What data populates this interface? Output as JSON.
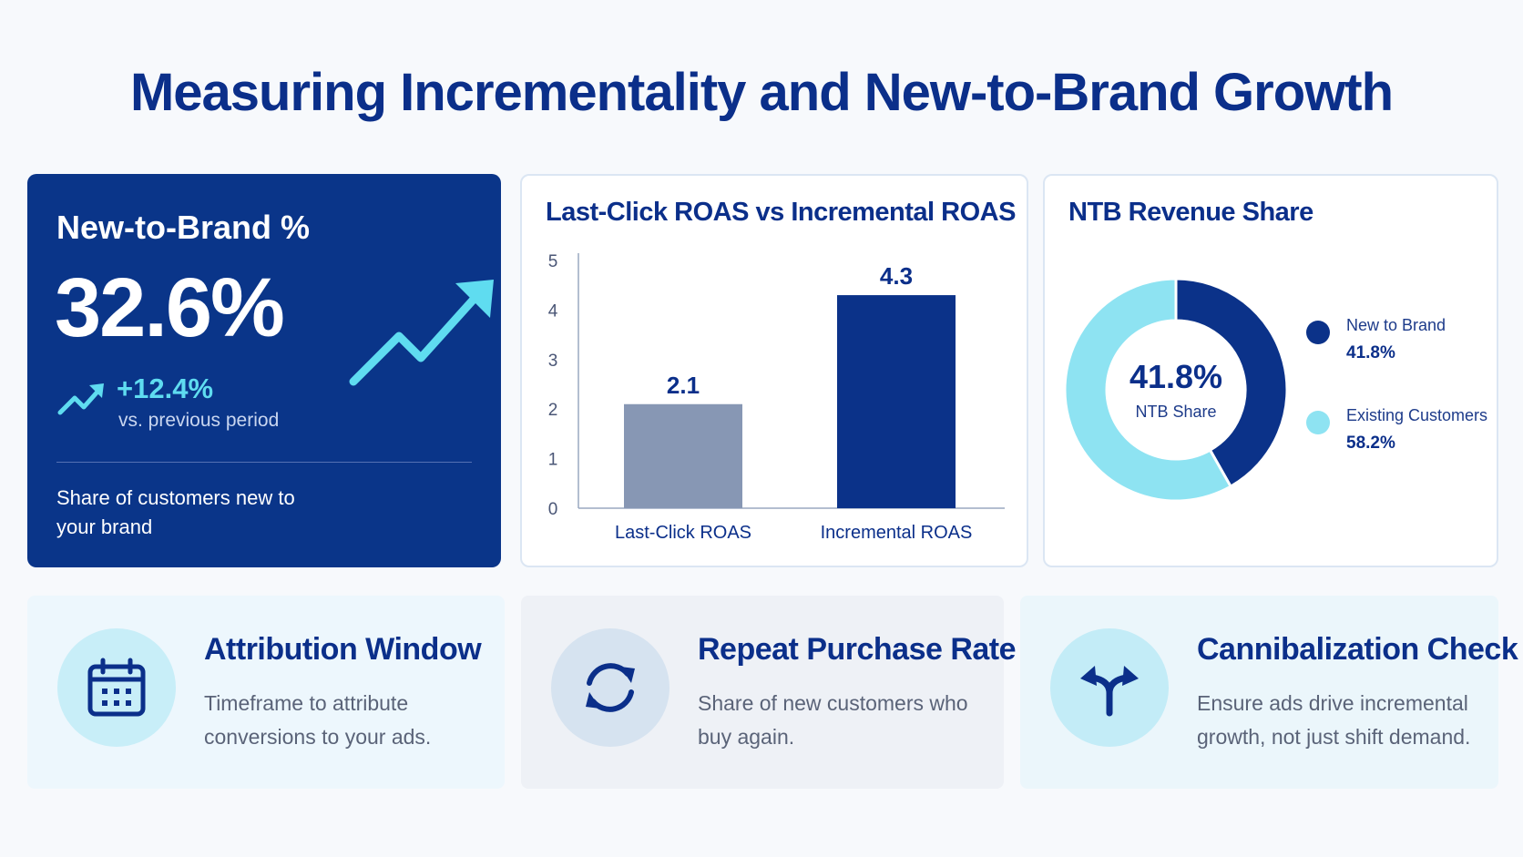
{
  "title": "Measuring Incrementality and New-to-Brand Growth",
  "kpi": {
    "title": "New-to-Brand %",
    "value": "32.6%",
    "change": "+12.4%",
    "change_label": "vs. previous period",
    "description": "Share of customers new to your brand"
  },
  "bar_chart": {
    "title": "Last-Click ROAS vs Incremental ROAS"
  },
  "pie_chart": {
    "title": "NTB Revenue Share",
    "center_value": "41.8%",
    "center_label": "NTB Share"
  },
  "chart_data": [
    {
      "type": "bar",
      "title": "Last-Click ROAS vs Incremental ROAS",
      "categories": [
        "Last-Click ROAS",
        "Incremental ROAS"
      ],
      "values": [
        2.1,
        4.3
      ],
      "value_labels": [
        "2.1",
        "4.3"
      ],
      "colors": [
        "#8797b4",
        "#0b3289"
      ],
      "ylim": [
        0,
        5
      ],
      "yticks": [
        "0",
        "1",
        "2",
        "3",
        "4",
        "5"
      ],
      "grid": false
    },
    {
      "type": "pie",
      "title": "NTB Revenue Share",
      "labels": [
        "New to Brand",
        "Existing Customers"
      ],
      "values": [
        41.8,
        58.2
      ],
      "value_labels": [
        "41.8%",
        "58.2%"
      ],
      "colors": [
        "#0b3289",
        "#8ee3f2"
      ],
      "legend_position": "right"
    }
  ],
  "cards": [
    {
      "title": "Attribution Window",
      "description": "Timeframe to attribute conversions to your ads.",
      "icon": "calendar-icon"
    },
    {
      "title": "Repeat Purchase Rate",
      "description": "Share of new customers who buy again.",
      "icon": "refresh-icon"
    },
    {
      "title": "Cannibalization Check",
      "description": "Ensure ads drive incremental growth, not just shift demand.",
      "icon": "split-arrows-icon"
    }
  ]
}
